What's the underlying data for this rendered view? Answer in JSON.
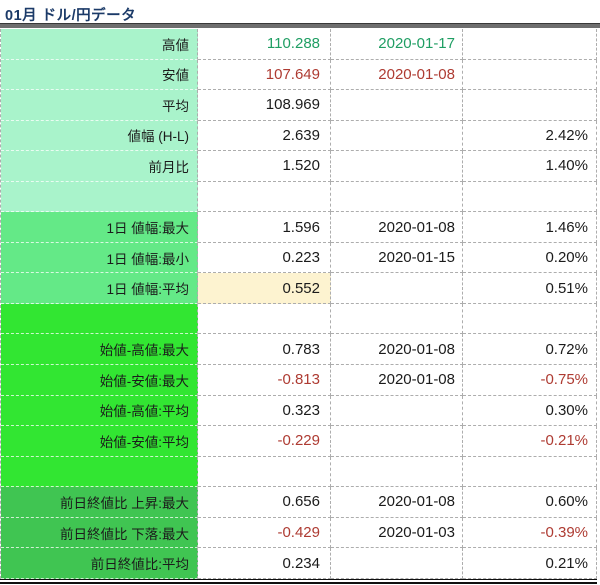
{
  "title": "01月 ドル/円データ",
  "colors": {
    "title": "#1b3a68",
    "section1_bg": "#a9f3cb",
    "section2_bg": "#64e987",
    "section3_bg": "#32e632",
    "section4_bg": "#40c552",
    "highlight_bg": "#fdf3d0",
    "up_text": "#1f9e63",
    "down_text": "#ae3b32",
    "text": "#1b1b1b",
    "grid_line": "#adadad",
    "top_rule": "#6e6e6e",
    "bottom_rule": "#101010"
  },
  "table": {
    "rows": [
      {
        "section": "s1",
        "label": "高値",
        "value": "110.288",
        "value_tone": "up",
        "date": "2020-01-17",
        "date_tone": "up"
      },
      {
        "section": "s1",
        "label": "安値",
        "value": "107.649",
        "value_tone": "down",
        "date": "2020-01-08",
        "date_tone": "down"
      },
      {
        "section": "s1",
        "label": "平均",
        "value": "108.969"
      },
      {
        "section": "s1",
        "label": "値幅 (H-L)",
        "value": "2.639",
        "pct": "2.42%"
      },
      {
        "section": "s1",
        "label": "前月比",
        "value": "1.520",
        "pct": "1.40%"
      },
      {
        "section": "s1",
        "empty": true
      },
      {
        "section": "s2",
        "label": "1日 値幅:最大",
        "value": "1.596",
        "date": "2020-01-08",
        "pct": "1.46%"
      },
      {
        "section": "s2",
        "label": "1日 値幅:最小",
        "value": "0.223",
        "date": "2020-01-15",
        "pct": "0.20%"
      },
      {
        "section": "s2",
        "label": "1日 値幅:平均",
        "value": "0.552",
        "value_highlight": true,
        "pct": "0.51%"
      },
      {
        "section": "s3",
        "empty": true
      },
      {
        "section": "s3",
        "label": "始値-高値:最大",
        "value": "0.783",
        "date": "2020-01-08",
        "pct": "0.72%"
      },
      {
        "section": "s3",
        "label": "始値-安値:最大",
        "value": "-0.813",
        "value_tone": "down",
        "date": "2020-01-08",
        "pct": "-0.75%",
        "pct_tone": "down"
      },
      {
        "section": "s3",
        "label": "始値-高値:平均",
        "value": "0.323",
        "pct": "0.30%"
      },
      {
        "section": "s3",
        "label": "始値-安値:平均",
        "value": "-0.229",
        "value_tone": "down",
        "pct": "-0.21%",
        "pct_tone": "down"
      },
      {
        "section": "s3",
        "empty": true
      },
      {
        "section": "s4",
        "label": "前日終値比 上昇:最大",
        "value": "0.656",
        "date": "2020-01-08",
        "pct": "0.60%"
      },
      {
        "section": "s4",
        "label": "前日終値比 下落:最大",
        "value": "-0.429",
        "value_tone": "down",
        "date": "2020-01-03",
        "pct": "-0.39%",
        "pct_tone": "down"
      },
      {
        "section": "s4",
        "label": "前日終値比:平均",
        "value": "0.234",
        "pct": "0.21%"
      }
    ]
  }
}
